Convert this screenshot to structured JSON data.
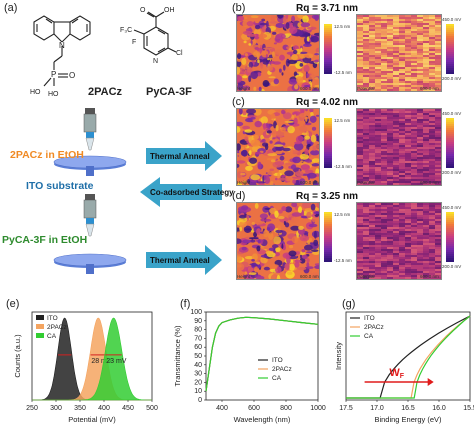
{
  "panels": {
    "a": {
      "label": "(a)"
    },
    "b": {
      "label": "(b)",
      "rq": "Rq = 3.71 nm"
    },
    "c": {
      "label": "(c)",
      "rq": "Rq = 4.02 nm"
    },
    "d": {
      "label": "(d)",
      "rq": "Rq = 3.25 nm"
    },
    "e": {
      "label": "(e)"
    },
    "f": {
      "label": "(f)"
    },
    "g": {
      "label": "(g)"
    }
  },
  "molecules": {
    "pacz": {
      "name": "2PACz",
      "atoms": {
        "n": "N",
        "p": "P",
        "o": "O",
        "ho1": "HO",
        "ho2": "HO"
      }
    },
    "pyca": {
      "name": "PyCA-3F",
      "atoms": {
        "o": "O",
        "oh": "OH",
        "cl": "Cl",
        "n": "N",
        "cf3": "F₃C",
        "f": "F"
      }
    }
  },
  "process": {
    "step1": "2PACz in EtOH",
    "step2": "ITO substrate",
    "step3": "PyCA-3F in EtOH",
    "arrow1": "Thermal Anneal",
    "arrow2": "Co-adsorbed Strategy",
    "arrow3": "Thermal Anneal"
  },
  "afm": {
    "height_label": "Height",
    "potential_label": "Potential",
    "scale_label": "600.0 nm",
    "height_max": "12.5 nm",
    "height_min": "-12.5 nm",
    "potential_max": "450.0 mV",
    "potential_min": "200.0 mV"
  },
  "colors": {
    "orange": "#f08a24",
    "blue": "#1f6fa8",
    "green": "#2e8b2e",
    "arrow_fill": "#3aa3c9",
    "ito": "#222222",
    "pacz": "#f4a460",
    "ca": "#32cd32"
  },
  "chart_data": [
    {
      "type": "area",
      "panel": "e",
      "xlabel": "Potential (mV)",
      "ylabel": "Counts (a.u.)",
      "xlim": [
        250,
        500
      ],
      "xticks": [
        "250",
        "300",
        "350",
        "400",
        "450",
        "500"
      ],
      "series": [
        {
          "name": "ITO",
          "center": 318,
          "width": 14,
          "color": "#222222",
          "annotation": ""
        },
        {
          "name": "2PACz",
          "center": 388,
          "width": 16,
          "color": "#f4a460",
          "annotation": "28 mV"
        },
        {
          "name": "CA",
          "center": 420,
          "width": 17,
          "color": "#32cd32",
          "annotation": "23 mV"
        }
      ]
    },
    {
      "type": "line",
      "panel": "f",
      "xlabel": "Wavelength (nm)",
      "ylabel": "Transmittance (%)",
      "xlim": [
        300,
        1000
      ],
      "ylim": [
        0,
        100
      ],
      "xticks": [
        "400",
        "600",
        "800",
        "1000"
      ],
      "yticks": [
        "0",
        "10",
        "20",
        "30",
        "40",
        "50",
        "60",
        "70",
        "80",
        "90",
        "100"
      ],
      "x": [
        300,
        320,
        340,
        360,
        380,
        400,
        450,
        500,
        550,
        600,
        700,
        800,
        900,
        1000
      ],
      "series": [
        {
          "name": "ITO",
          "color": "#222222",
          "values": [
            10,
            35,
            60,
            76,
            84,
            88,
            91,
            93,
            94,
            93.5,
            92,
            90,
            88,
            86
          ]
        },
        {
          "name": "2PACz",
          "color": "#f4a460",
          "values": [
            10,
            35,
            60,
            76,
            84,
            88,
            91,
            93,
            94,
            93.5,
            92,
            90,
            88,
            86
          ]
        },
        {
          "name": "CA",
          "color": "#32cd32",
          "values": [
            10,
            35,
            60,
            76,
            84,
            88,
            91,
            93,
            94,
            93.5,
            92,
            90,
            88,
            86
          ]
        }
      ]
    },
    {
      "type": "line",
      "panel": "g",
      "xlabel": "Binding Energy (eV)",
      "ylabel": "Intensity",
      "xlim": [
        17.5,
        15.5
      ],
      "xticks": [
        "17.5",
        "17.0",
        "16.5",
        "16.0",
        "15.5"
      ],
      "annotation": "W",
      "annotation_sub": "F",
      "series": [
        {
          "name": "ITO",
          "color": "#222222",
          "onset": 16.95
        },
        {
          "name": "2PACz",
          "color": "#f4a460",
          "onset": 16.45
        },
        {
          "name": "CA",
          "color": "#32cd32",
          "onset": 16.4
        }
      ]
    }
  ]
}
